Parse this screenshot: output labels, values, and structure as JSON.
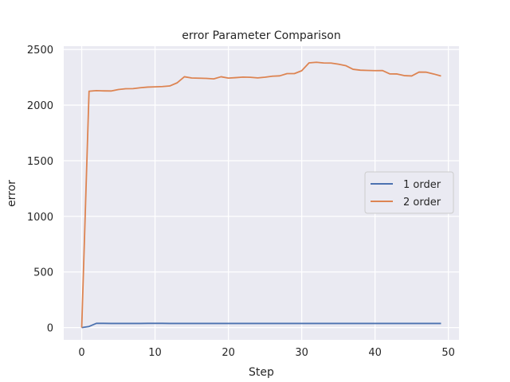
{
  "chart_data": {
    "type": "line",
    "title": "error Parameter Comparison",
    "xlabel": "Step",
    "ylabel": "error",
    "xlim": [
      -2.45,
      51.45
    ],
    "ylim": [
      -110,
      2530
    ],
    "xticks": [
      0,
      10,
      20,
      30,
      40,
      50
    ],
    "yticks": [
      0,
      500,
      1000,
      1500,
      2000,
      2500
    ],
    "grid": true,
    "legend_position": "center-right",
    "x": [
      0,
      1,
      2,
      3,
      4,
      5,
      6,
      7,
      8,
      9,
      10,
      11,
      12,
      13,
      14,
      15,
      16,
      17,
      18,
      19,
      20,
      21,
      22,
      23,
      24,
      25,
      26,
      27,
      28,
      29,
      30,
      31,
      32,
      33,
      34,
      35,
      36,
      37,
      38,
      39,
      40,
      41,
      42,
      43,
      44,
      45,
      46,
      47,
      48,
      49
    ],
    "series": [
      {
        "name": "1 order",
        "color": "#4c72b0",
        "values": [
          0,
          10,
          38,
          38,
          37,
          37,
          37,
          37,
          37,
          38,
          38,
          38,
          37,
          37,
          37,
          37,
          37,
          37,
          37,
          37,
          37,
          37,
          37,
          37,
          37,
          37,
          37,
          37,
          37,
          37,
          37,
          37,
          37,
          37,
          37,
          37,
          37,
          37,
          37,
          37,
          37,
          37,
          37,
          37,
          37,
          37,
          37,
          37,
          37,
          37
        ]
      },
      {
        "name": "2 order",
        "color": "#dd8452",
        "values": [
          0,
          2125,
          2130,
          2128,
          2127,
          2140,
          2147,
          2148,
          2156,
          2162,
          2164,
          2167,
          2172,
          2200,
          2255,
          2244,
          2242,
          2240,
          2236,
          2255,
          2243,
          2247,
          2252,
          2250,
          2245,
          2251,
          2260,
          2263,
          2283,
          2283,
          2309,
          2380,
          2385,
          2379,
          2378,
          2368,
          2355,
          2322,
          2314,
          2312,
          2310,
          2311,
          2281,
          2280,
          2265,
          2262,
          2297,
          2296,
          2280,
          2262
        ]
      }
    ]
  }
}
